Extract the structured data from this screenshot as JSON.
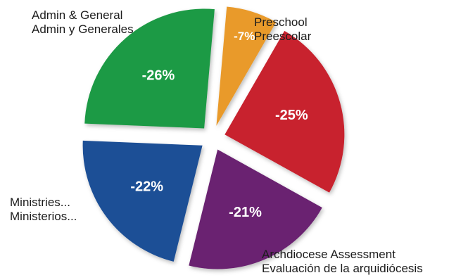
{
  "chart_data": {
    "type": "pie",
    "title": "",
    "slices": [
      {
        "label_en": "Preschool",
        "label_es": "Preescolar",
        "value": -7,
        "value_label": "-7%",
        "color": "#e99a2c"
      },
      {
        "label_en": "",
        "label_es": "",
        "value": -25,
        "value_label": "-25%",
        "color": "#c8202f"
      },
      {
        "label_en": "Archdiocese Assessment",
        "label_es": "Evaluación de la arquidiócesis",
        "value": -21,
        "value_label": "-21%",
        "color": "#6b2371"
      },
      {
        "label_en": "Ministries...",
        "label_es": "Ministerios...",
        "value": -22,
        "value_label": "-22%",
        "color": "#1f4f96"
      },
      {
        "label_en": "Admin & General",
        "label_es": "Admin y Generales",
        "value": -26,
        "value_label": "-26%",
        "color": "#1f9a45"
      }
    ],
    "legend": "none",
    "exploded": true
  }
}
